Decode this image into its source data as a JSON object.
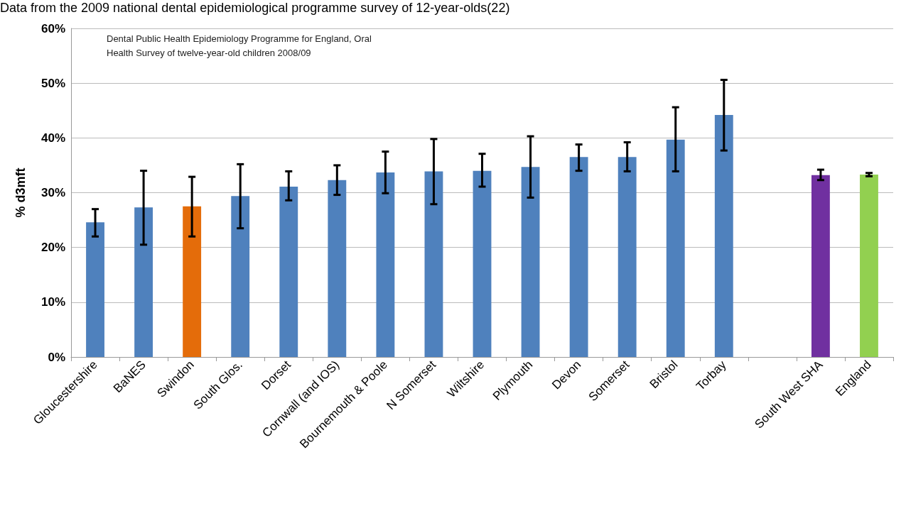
{
  "chart_data": {
    "type": "bar",
    "ylabel": "% d3mft",
    "annotations": [
      "Data from the 2009 national dental epidemiological programme survey of 12-year-olds(22)",
      "Dental Public Health Epidemiology Programme for England, Oral\nHealth Survey of twelve-year-old children 2008/09"
    ],
    "categories": [
      "Gloucestershire",
      "BaNES",
      "Swindon",
      "South Glos.",
      "Dorset",
      "Cornwall (and IOS)",
      "Bournemouth & Poole",
      "N Somerset",
      "Wiltshire",
      "Plymouth",
      "Devon",
      "Somerset",
      "Bristol",
      "Torbay",
      null,
      "South West SHA",
      "England"
    ],
    "values": [
      24.6,
      27.3,
      27.5,
      29.4,
      31.1,
      32.3,
      33.7,
      33.9,
      34.0,
      34.7,
      36.5,
      36.5,
      39.7,
      44.2,
      null,
      33.2,
      33.3
    ],
    "colors": [
      "#4f81bd",
      "#4f81bd",
      "#e46c0a",
      "#4f81bd",
      "#4f81bd",
      "#4f81bd",
      "#4f81bd",
      "#4f81bd",
      "#4f81bd",
      "#4f81bd",
      "#4f81bd",
      "#4f81bd",
      "#4f81bd",
      "#4f81bd",
      "#4f81bd",
      "#7030a0",
      "#92d050"
    ],
    "errors": [
      [
        22,
        27
      ],
      [
        20.5,
        34
      ],
      [
        22,
        32.9
      ],
      [
        23.5,
        35.2
      ],
      [
        28.6,
        33.9
      ],
      [
        29.6,
        35
      ],
      [
        29.9,
        37.5
      ],
      [
        27.9,
        39.8
      ],
      [
        31.1,
        37.1
      ],
      [
        29.1,
        40.3
      ],
      [
        34,
        38.8
      ],
      [
        33.9,
        39.2
      ],
      [
        33.9,
        45.6
      ],
      [
        37.7,
        50.6
      ],
      null,
      [
        32.3,
        34.2
      ],
      [
        33,
        33.6
      ]
    ],
    "ylim": [
      0,
      60
    ],
    "yticks": [
      {
        "value": 0,
        "label": "0%"
      },
      {
        "value": 10,
        "label": "10%"
      },
      {
        "value": 20,
        "label": "20%"
      },
      {
        "value": 30,
        "label": "30%"
      },
      {
        "value": 40,
        "label": "40%"
      },
      {
        "value": 50,
        "label": "50%"
      },
      {
        "value": 60,
        "label": "60%"
      }
    ],
    "grid": "y"
  }
}
